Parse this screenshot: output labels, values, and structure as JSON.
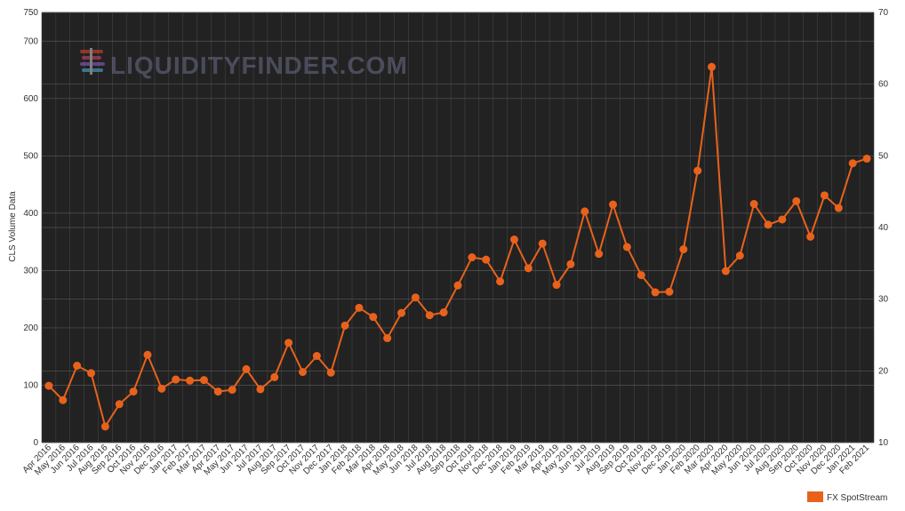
{
  "chart_data": {
    "type": "line",
    "title": "",
    "xlabel": "",
    "ylabel": "CLS Volume Data",
    "ylim": [
      0,
      750
    ],
    "y2lim": [
      10,
      70
    ],
    "yticks": [
      0,
      100,
      200,
      300,
      400,
      500,
      600,
      700,
      750
    ],
    "y2ticks": [
      10,
      20,
      30,
      40,
      50,
      60,
      70
    ],
    "categories": [
      "Apr 2016",
      "May 2016",
      "Jun 2016",
      "Jul 2016",
      "Aug 2016",
      "Sep 2016",
      "Oct 2016",
      "Nov 2016",
      "Dec 2016",
      "Jan 2017",
      "Feb 2017",
      "Mar 2017",
      "Apr 2017",
      "May 2017",
      "Jun 2017",
      "Jul 2017",
      "Aug 2017",
      "Sep 2017",
      "Oct 2017",
      "Nov 2017",
      "Dec 2017",
      "Jan 2018",
      "Feb 2018",
      "Mar 2018",
      "Apr 2018",
      "May 2018",
      "Jun 2018",
      "Jul 2018",
      "Aug 2018",
      "Sep 2018",
      "Oct 2018",
      "Nov 2018",
      "Dec 2018",
      "Jan 2019",
      "Feb 2019",
      "Mar 2019",
      "Apr 2019",
      "May 2019",
      "Jun 2019",
      "Jul 2019",
      "Aug 2019",
      "Sep 2019",
      "Oct 2019",
      "Nov 2019",
      "Dec 2019",
      "Jan 2020",
      "Feb 2020",
      "Mar 2020",
      "Apr 2020",
      "May 2020",
      "Jun 2020",
      "Jul 2020",
      "Aug 2020",
      "Sep 2020",
      "Oct 2020",
      "Nov 2020",
      "Dec 2020",
      "Jan 2021",
      "Feb 2021"
    ],
    "series": [
      {
        "name": "FX SpotStream",
        "color": "#e8621c",
        "values": [
          99,
          74,
          134,
          121,
          28,
          67,
          89,
          153,
          94,
          110,
          108,
          109,
          89,
          92,
          128,
          93,
          114,
          174,
          123,
          151,
          122,
          204,
          235,
          219,
          182,
          226,
          253,
          222,
          227,
          274,
          323,
          319,
          281,
          354,
          304,
          347,
          275,
          311,
          403,
          329,
          415,
          341,
          292,
          262,
          263,
          337,
          474,
          655,
          299,
          326,
          416,
          380,
          389,
          421,
          359,
          431,
          409,
          487,
          495
        ]
      }
    ],
    "grid": true,
    "legend_position": "bottom-right",
    "colors": {
      "background": "#222222",
      "grid": "#444444",
      "line": "#e8621c"
    },
    "watermark": "LIQUIDITYFINDER.COM"
  }
}
